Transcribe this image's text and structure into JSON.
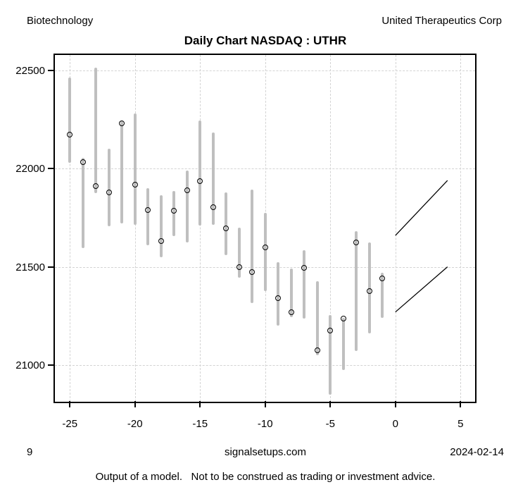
{
  "header": {
    "sector": "Biotechnology",
    "company": "United Therapeutics Corp"
  },
  "title": "Daily Chart NASDAQ : UTHR",
  "footer": {
    "page_number": "9",
    "site": "signalsetups.com",
    "date": "2024-02-14",
    "disclaimer": "Output of a model.   Not to be construed as trading or investment advice."
  },
  "chart_data": {
    "type": "bar",
    "subtype": "high-low-close daily price bars with forecast trend lines",
    "title": "Daily Chart NASDAQ : UTHR",
    "xlabel": "",
    "ylabel": "",
    "x": [
      -25,
      -24,
      -23,
      -22,
      -21,
      -20,
      -19,
      -18,
      -17,
      -16,
      -15,
      -14,
      -13,
      -12,
      -11,
      -10,
      -9,
      -8,
      -7,
      -6,
      -5,
      -4,
      -3,
      -2,
      -1
    ],
    "series": [
      {
        "name": "high",
        "values": [
          22465,
          22055,
          22515,
          22100,
          22240,
          22280,
          21900,
          21865,
          21885,
          21990,
          22245,
          22185,
          21880,
          21700,
          21895,
          21775,
          21525,
          21490,
          21585,
          21425,
          21255,
          21240,
          21680,
          21625,
          21470
        ]
      },
      {
        "name": "low",
        "values": [
          22030,
          21595,
          21875,
          21705,
          21720,
          21715,
          21610,
          21550,
          21655,
          21625,
          21710,
          21715,
          21560,
          21445,
          21315,
          21375,
          21200,
          21245,
          21235,
          21050,
          20850,
          20975,
          21070,
          21160,
          21240
        ]
      },
      {
        "name": "close",
        "values": [
          22175,
          22035,
          21910,
          21880,
          22230,
          21920,
          21790,
          21630,
          21785,
          21890,
          21935,
          21805,
          21695,
          21500,
          21475,
          21600,
          21340,
          21270,
          21495,
          21075,
          21175,
          21235,
          21625,
          21375,
          21440
        ]
      }
    ],
    "trend_lines": [
      {
        "x1": 0,
        "y1": 21660,
        "x2": 4,
        "y2": 21940
      },
      {
        "x1": 0,
        "y1": 21270,
        "x2": 4,
        "y2": 21500
      }
    ],
    "x_ticks": [
      -25,
      -20,
      -15,
      -10,
      -5,
      0,
      5
    ],
    "y_ticks": [
      21000,
      21500,
      22000,
      22500
    ],
    "xlim": [
      -26.15,
      6.12
    ],
    "ylim": [
      20813,
      22579
    ],
    "grid": true,
    "legend": false,
    "colors": {
      "bar": "#bfbfbf",
      "marker": "#000000",
      "trend_line": "#000000",
      "grid": "#d3d3d3"
    }
  }
}
